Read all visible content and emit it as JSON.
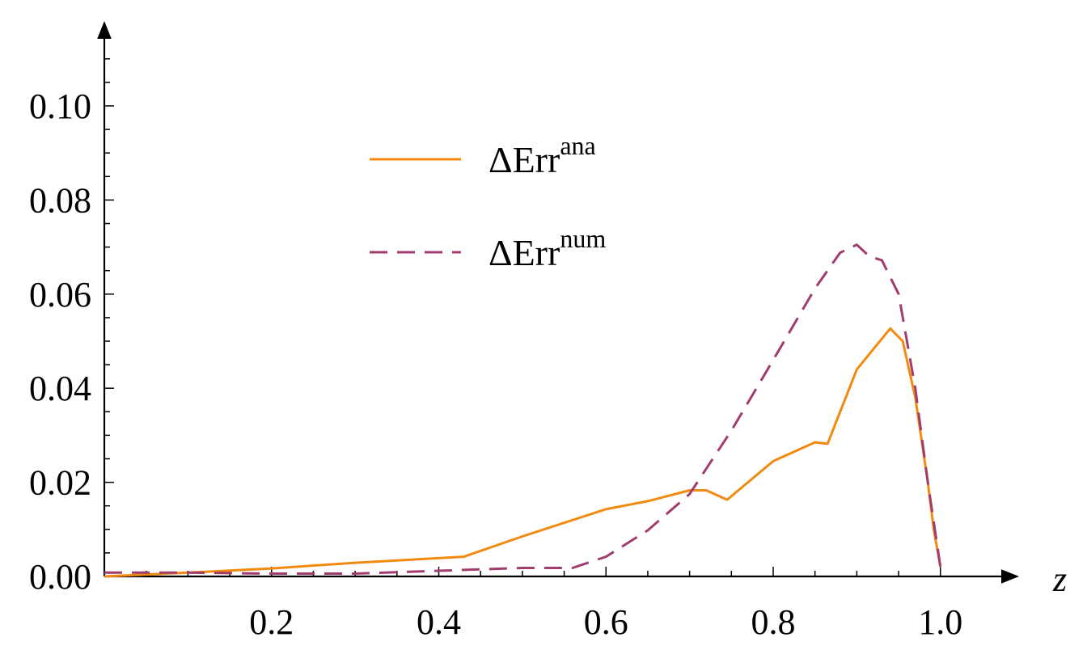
{
  "chart_data": {
    "type": "line",
    "title": "",
    "xlabel": "z",
    "ylabel": "",
    "xlim": [
      0.0,
      1.05
    ],
    "ylim": [
      0.0,
      0.115
    ],
    "x_ticks": [
      0.2,
      0.4,
      0.6,
      0.8,
      1.0
    ],
    "x_tick_labels": [
      "0.2",
      "0.4",
      "0.6",
      "0.8",
      "1.0"
    ],
    "y_ticks": [
      0.0,
      0.02,
      0.04,
      0.06,
      0.08,
      0.1
    ],
    "y_tick_labels": [
      "0.00",
      "0.02",
      "0.04",
      "0.06",
      "0.08",
      "0.10"
    ],
    "grid": false,
    "legend_position": "upper-center",
    "series": [
      {
        "name_base": "ΔErr",
        "name_sup": "ana",
        "color": "#F28A0F",
        "style": "solid",
        "points": [
          [
            0.0,
            0.0
          ],
          [
            0.1,
            0.0008
          ],
          [
            0.2,
            0.0017
          ],
          [
            0.3,
            0.0029
          ],
          [
            0.43,
            0.0042
          ],
          [
            0.5,
            0.0085
          ],
          [
            0.6,
            0.0143
          ],
          [
            0.65,
            0.016
          ],
          [
            0.7,
            0.0183
          ],
          [
            0.72,
            0.0183
          ],
          [
            0.745,
            0.0163
          ],
          [
            0.8,
            0.0245
          ],
          [
            0.85,
            0.0285
          ],
          [
            0.865,
            0.0282
          ],
          [
            0.9,
            0.044
          ],
          [
            0.94,
            0.0527
          ],
          [
            0.955,
            0.05
          ],
          [
            0.97,
            0.038
          ],
          [
            0.985,
            0.02
          ],
          [
            0.992,
            0.01
          ],
          [
            1.0,
            0.002
          ]
        ]
      },
      {
        "name_base": "ΔErr",
        "name_sup": "num",
        "color": "#A03C6E",
        "style": "dashed",
        "points": [
          [
            0.0,
            0.0008
          ],
          [
            0.1,
            0.0008
          ],
          [
            0.2,
            0.0006
          ],
          [
            0.3,
            0.0006
          ],
          [
            0.4,
            0.0012
          ],
          [
            0.5,
            0.0018
          ],
          [
            0.56,
            0.0018
          ],
          [
            0.6,
            0.0042
          ],
          [
            0.65,
            0.0098
          ],
          [
            0.7,
            0.0175
          ],
          [
            0.75,
            0.031
          ],
          [
            0.8,
            0.046
          ],
          [
            0.85,
            0.0612
          ],
          [
            0.88,
            0.0688
          ],
          [
            0.9,
            0.0705
          ],
          [
            0.915,
            0.068
          ],
          [
            0.93,
            0.0672
          ],
          [
            0.95,
            0.06
          ],
          [
            0.96,
            0.05
          ],
          [
            0.97,
            0.04
          ],
          [
            0.985,
            0.02
          ],
          [
            1.0,
            0.002
          ]
        ]
      }
    ]
  }
}
